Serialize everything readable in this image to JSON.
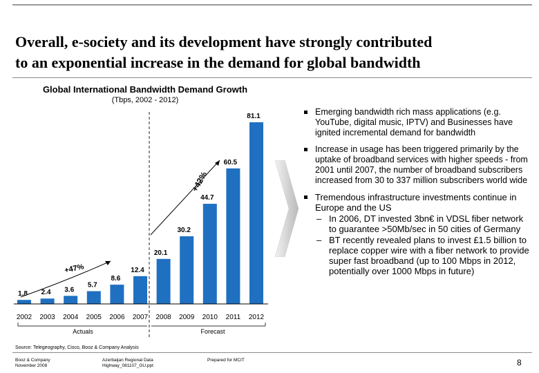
{
  "slide": {
    "title_line1": "Overall, e-society and its development have strongly contributed",
    "title_line2": "to an exponential increase in the demand for global bandwidth",
    "page_number": "8"
  },
  "chart_data": {
    "type": "bar",
    "title": "Global International Bandwidth Demand Growth",
    "subtitle": "(Tbps, 2002 - 2012)",
    "categories": [
      "2002",
      "2003",
      "2004",
      "2005",
      "2006",
      "2007",
      "2008",
      "2009",
      "2010",
      "2011",
      "2012"
    ],
    "values": [
      1.8,
      2.4,
      3.6,
      5.7,
      8.6,
      12.4,
      20.1,
      30.2,
      44.7,
      60.5,
      81.1
    ],
    "value_labels": [
      "1.8",
      "2.4",
      "3.6",
      "5.7",
      "8.6",
      "12.4",
      "20.1",
      "30.2",
      "44.7",
      "60.5",
      "81.1"
    ],
    "bar_color": "#1f70c1",
    "ylim": [
      0,
      81.1
    ],
    "divider_after": "2007",
    "growth_annotations": [
      "+47%",
      "+42%"
    ],
    "period_labels": [
      "Actuals",
      "Forecast"
    ]
  },
  "bullets": [
    {
      "text": "Emerging bandwidth rich mass applications (e.g. YouTube, digital music, IPTV) and Businesses have ignited incremental demand for bandwidth"
    },
    {
      "text": "Increase in usage has been triggered primarily by the uptake of broadband services with higher speeds - from 2001 until 2007, the number of broadband subscribers increased from 30 to 337 million subscribers world wide"
    },
    {
      "text": "Tremendous infrastructure investments continue in Europe and the US",
      "subs": [
        "In 2006, DT invested 3bn€ in VDSL fiber network to guarantee >50Mb/sec in 50 cities of Germany",
        "BT recently revealed plans to invest £1.5 billion to replace copper wire with a fiber network to provide super fast broadband (up to 100 Mbps in 2012, potentially over 1000 Mbps in future)"
      ]
    }
  ],
  "footer": {
    "source": "Source:   Telegeography, Cisco, Booz & Company Analysis",
    "company_line1": "Booz & Company",
    "company_line2": "November 2008",
    "doc_line1": "Azerbaijan Regional Data",
    "doc_line2": "Highway_081107_GU.ppt",
    "prepared": "Prepared for MCIT",
    "dash": "–"
  }
}
